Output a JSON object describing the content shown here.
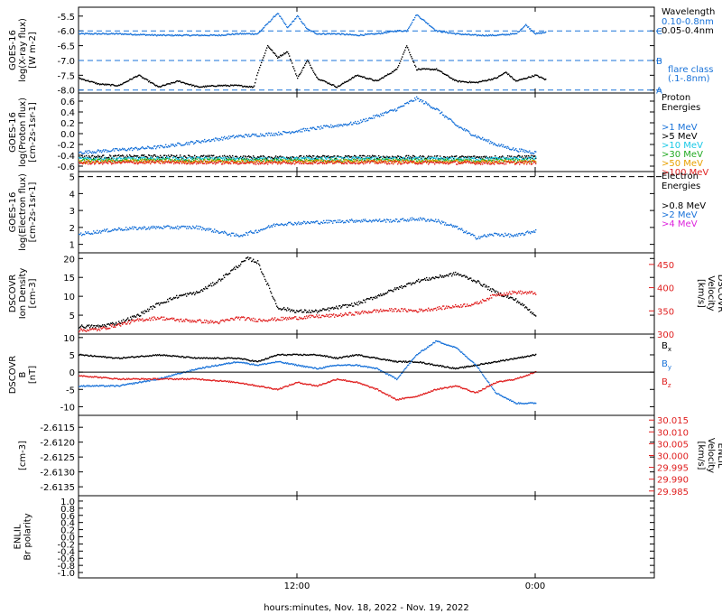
{
  "x_axis": {
    "label": "hours:minutes, Nov. 18, 2022 - Nov. 19, 2022",
    "ticks": [
      {
        "label": "12:00",
        "hours": 12
      },
      {
        "label": "0:00",
        "hours": 24
      }
    ],
    "range_hours": [
      1,
      30
    ]
  },
  "colors": {
    "black": "#000000",
    "blue": "#1a73d9",
    "cyan": "#19c8e6",
    "green": "#22aa22",
    "orange": "#e8a000",
    "red": "#e02020",
    "magenta": "#dd22dd"
  },
  "chart_data": [
    {
      "type": "line",
      "id": "xray",
      "ylabel": [
        "GOES-16",
        "log(X-ray flux)",
        "[W m-2]"
      ],
      "ylim": [
        -8.1,
        -5.2
      ],
      "yticks": [
        -5.5,
        -6.0,
        -6.5,
        -7.0,
        -7.5,
        -8.0
      ],
      "ytick_labels": [
        "-5.5",
        "-6.0",
        "-6.5",
        "-7.0",
        "-7.5",
        "-8.0"
      ],
      "legend_title": [
        "Wavelength"
      ],
      "series": [
        {
          "name": "0.10-0.8nm",
          "color": "blue",
          "x": [
            1,
            3,
            5,
            7,
            8,
            9,
            10,
            11,
            11.5,
            12,
            12.5,
            13,
            14,
            15,
            16,
            17,
            17.5,
            18,
            19,
            20,
            21,
            22,
            23,
            23.5,
            24,
            24.5
          ],
          "y": [
            -6.1,
            -6.1,
            -6.15,
            -6.15,
            -6.15,
            -6.1,
            -6.1,
            -5.4,
            -5.9,
            -5.5,
            -5.95,
            -6.1,
            -6.1,
            -6.15,
            -6.1,
            -6.0,
            -6.0,
            -5.45,
            -6.0,
            -6.1,
            -6.15,
            -6.15,
            -6.1,
            -5.8,
            -6.1,
            -6.05
          ]
        },
        {
          "name": "0.05-0.4nm",
          "color": "black",
          "x": [
            1,
            2,
            3,
            4,
            5,
            6,
            7,
            8,
            9,
            9.8,
            10,
            10.5,
            11,
            11.5,
            12,
            12.5,
            13,
            14,
            15,
            16,
            17,
            17.5,
            18,
            19,
            20,
            21,
            22,
            22.5,
            23,
            23.5,
            24,
            24.5
          ],
          "y": [
            -7.6,
            -7.8,
            -7.85,
            -7.5,
            -7.9,
            -7.7,
            -7.9,
            -7.85,
            -7.85,
            -7.9,
            -7.4,
            -6.5,
            -6.9,
            -6.7,
            -7.6,
            -7.0,
            -7.6,
            -7.9,
            -7.5,
            -7.7,
            -7.3,
            -6.5,
            -7.3,
            -7.3,
            -7.7,
            -7.75,
            -7.6,
            -7.4,
            -7.7,
            -7.6,
            -7.5,
            -7.65
          ]
        }
      ],
      "reference_lines": [
        {
          "y": -6.0,
          "label": "C"
        },
        {
          "y": -7.0,
          "label": "B"
        },
        {
          "y": -8.0,
          "label": "A"
        }
      ],
      "reference_note": [
        "flare class",
        "(.1-.8nm)"
      ]
    },
    {
      "type": "scatter",
      "id": "proton",
      "ylabel": [
        "GOES-16",
        "log(Proton flux)",
        "[cm-2s-1sr-1]"
      ],
      "ylim": [
        -0.7,
        0.75
      ],
      "yticks": [
        0.6,
        0.4,
        0.2,
        0.0,
        -0.2,
        -0.4,
        -0.6
      ],
      "ytick_labels": [
        "0.6",
        "0.4",
        "0.2",
        "0.0",
        "-0.2",
        "-0.4",
        "-0.6"
      ],
      "legend_title": [
        "Proton",
        "Energies"
      ],
      "series": [
        {
          "name": ">1 MeV",
          "color": "blue",
          "x": [
            1,
            3,
            5,
            7,
            9,
            11,
            13,
            15,
            17,
            18,
            19,
            20,
            21,
            22,
            23,
            24
          ],
          "y": [
            -0.35,
            -0.3,
            -0.25,
            -0.15,
            -0.05,
            0.0,
            0.1,
            0.2,
            0.45,
            0.65,
            0.45,
            0.15,
            -0.05,
            -0.2,
            -0.3,
            -0.35
          ]
        },
        {
          "name": ">5 MeV",
          "color": "black",
          "x": [
            1,
            5,
            10,
            15,
            20,
            24
          ],
          "y": [
            -0.43,
            -0.42,
            -0.44,
            -0.43,
            -0.44,
            -0.43
          ]
        },
        {
          "name": ">10 MeV",
          "color": "cyan",
          "x": [
            1,
            5,
            10,
            15,
            20,
            24
          ],
          "y": [
            -0.47,
            -0.46,
            -0.47,
            -0.46,
            -0.47,
            -0.46
          ]
        },
        {
          "name": ">30 MeV",
          "color": "green",
          "x": [
            1,
            5,
            10,
            15,
            20,
            24
          ],
          "y": [
            -0.5,
            -0.49,
            -0.5,
            -0.49,
            -0.5,
            -0.5
          ]
        },
        {
          "name": ">50 MeV",
          "color": "orange",
          "x": [
            1,
            5,
            10,
            15,
            20,
            24
          ],
          "y": [
            -0.52,
            -0.51,
            -0.52,
            -0.51,
            -0.52,
            -0.52
          ]
        },
        {
          "name": ">100 MeV",
          "color": "red",
          "x": [
            1,
            5,
            10,
            15,
            20,
            24
          ],
          "y": [
            -0.54,
            -0.53,
            -0.54,
            -0.53,
            -0.54,
            -0.54
          ]
        }
      ]
    },
    {
      "type": "scatter",
      "id": "electron",
      "ylabel": [
        "GOES-16",
        "log(Electron flux)",
        "[cm-2s-1sr-1]"
      ],
      "ylim": [
        0.5,
        5.3
      ],
      "yticks": [
        5,
        4,
        3,
        2,
        1
      ],
      "ytick_labels": [
        "5",
        "4",
        "3",
        "2",
        "1"
      ],
      "legend_title": [
        "Electron",
        "Energies"
      ],
      "series": [
        {
          "name": ">0.8 MeV",
          "color": "black",
          "x": [],
          "y": []
        },
        {
          "name": ">2 MeV",
          "color": "blue",
          "x": [
            1,
            3,
            5,
            7,
            9,
            10,
            11,
            13,
            15,
            17,
            18,
            19,
            20,
            21,
            22,
            23,
            24
          ],
          "y": [
            1.6,
            1.9,
            2.0,
            2.0,
            1.5,
            1.8,
            2.2,
            2.3,
            2.4,
            2.4,
            2.5,
            2.4,
            2.0,
            1.4,
            1.6,
            1.5,
            1.8
          ]
        },
        {
          "name": ">4 MeV",
          "color": "magenta",
          "x": [],
          "y": []
        }
      ],
      "reference_lines": [
        {
          "y": 5.0,
          "label": ""
        }
      ]
    },
    {
      "type": "scatter",
      "id": "dscovr-density",
      "ylabel": [
        "DSCOVR",
        "Ion Density",
        "[cm-3]"
      ],
      "ylim": [
        0,
        21.5
      ],
      "yticks": [
        20,
        15,
        10,
        5
      ],
      "ytick_labels": [
        "20",
        "15",
        "10",
        "5"
      ],
      "ylabel_right": [
        "DSCOVR",
        "Velocity",
        "[km/s]"
      ],
      "ylim_right": [
        300,
        475
      ],
      "yticks_right": [
        450,
        400,
        350,
        300
      ],
      "ytick_labels_right": [
        "450",
        "400",
        "350",
        "300"
      ],
      "series": [
        {
          "name": "Ion Density",
          "color": "black",
          "x": [
            1,
            2,
            3,
            4,
            5,
            6,
            7,
            8,
            9,
            9.5,
            10,
            10.5,
            11,
            12,
            13,
            14,
            15,
            16,
            17,
            18,
            19,
            20,
            21,
            22,
            23,
            23.5,
            24
          ],
          "y": [
            2,
            2,
            3,
            5,
            8,
            10,
            11,
            14,
            18,
            20,
            19,
            13,
            7,
            6,
            6,
            7,
            8,
            10,
            12,
            14,
            15,
            16,
            14,
            11,
            9,
            7,
            5
          ]
        },
        {
          "name": "Velocity",
          "color": "red",
          "axis": "right",
          "x": [
            1,
            2,
            3,
            4,
            5,
            6,
            7,
            8,
            9,
            10,
            11,
            12,
            13,
            14,
            15,
            16,
            17,
            18,
            19,
            20,
            21,
            22,
            23,
            24
          ],
          "y": [
            308,
            310,
            320,
            330,
            335,
            330,
            328,
            325,
            335,
            330,
            332,
            335,
            338,
            340,
            345,
            350,
            352,
            350,
            355,
            360,
            365,
            385,
            390,
            388
          ]
        }
      ]
    },
    {
      "type": "line",
      "id": "dscovr-field",
      "ylabel": [
        "DSCOVR",
        "B",
        "[nT]"
      ],
      "ylim": [
        -12.5,
        11
      ],
      "yticks": [
        10,
        5,
        0,
        -5,
        -10
      ],
      "ytick_labels": [
        "10",
        "5",
        "0",
        "-5",
        "-10"
      ],
      "series": [
        {
          "name": "Bx",
          "color": "black",
          "x": [
            1,
            3,
            5,
            7,
            9,
            10,
            11,
            12,
            13,
            14,
            15,
            16,
            17,
            18,
            19,
            20,
            21,
            22,
            23,
            24
          ],
          "y": [
            5,
            4,
            5,
            4,
            4,
            3,
            5,
            5,
            5,
            4,
            5,
            4,
            3,
            3,
            2,
            1,
            2,
            3,
            4,
            5
          ]
        },
        {
          "name": "By",
          "color": "blue",
          "x": [
            1,
            3,
            5,
            7,
            9,
            10,
            11,
            12,
            13,
            14,
            15,
            16,
            17,
            18,
            19,
            20,
            21,
            22,
            23,
            24
          ],
          "y": [
            -4,
            -4,
            -2,
            1,
            3,
            2,
            3,
            2,
            1,
            2,
            2,
            1,
            -2,
            5,
            9,
            7,
            2,
            -6,
            -9,
            -9
          ]
        },
        {
          "name": "Bz",
          "color": "red",
          "x": [
            1,
            3,
            5,
            7,
            9,
            10,
            11,
            12,
            13,
            14,
            15,
            16,
            17,
            18,
            19,
            20,
            21,
            22,
            23,
            24
          ],
          "y": [
            -1,
            -2,
            -2,
            -2,
            -3,
            -4,
            -5,
            -3,
            -4,
            -2,
            -3,
            -5,
            -8,
            -7,
            -5,
            -4,
            -6,
            -3,
            -2,
            0
          ]
        }
      ]
    },
    {
      "type": "line",
      "id": "enlil-density",
      "ylabel": [
        "[cm-3]"
      ],
      "ylim": [
        -2.6138,
        -2.6111
      ],
      "yticks": [
        -2.6115,
        -2.612,
        -2.6125,
        -2.613,
        -2.6135
      ],
      "ytick_labels": [
        "-2.6115",
        "-2.6120",
        "-2.6125",
        "-2.6130",
        "-2.6135"
      ],
      "ylabel_right": [
        "ENLIL",
        "Velocity",
        "[km/s]"
      ],
      "ylim_right": [
        29.983,
        30.017
      ],
      "yticks_right": [
        30.015,
        30.01,
        30.005,
        30.0,
        29.995,
        29.99,
        29.985
      ],
      "ytick_labels_right": [
        "30.015",
        "30.010",
        "30.005",
        "30.000",
        "29.995",
        "29.990",
        "29.985"
      ],
      "series": []
    },
    {
      "type": "line",
      "id": "enlil-polarity",
      "ylabel": [
        "ENLIL",
        "Br polarity"
      ],
      "ylim": [
        -1.15,
        1.15
      ],
      "yticks": [
        1.0,
        0.8,
        0.6,
        0.4,
        0.2,
        0.0,
        -0.2,
        -0.4,
        -0.6,
        -0.8,
        -1.0
      ],
      "ytick_labels": [
        "1.0",
        "0.8",
        "0.6",
        "0.4",
        "0.2",
        "0.0",
        "-0.2",
        "-0.4",
        "-0.6",
        "-0.8",
        "-1.0"
      ],
      "series": []
    }
  ]
}
